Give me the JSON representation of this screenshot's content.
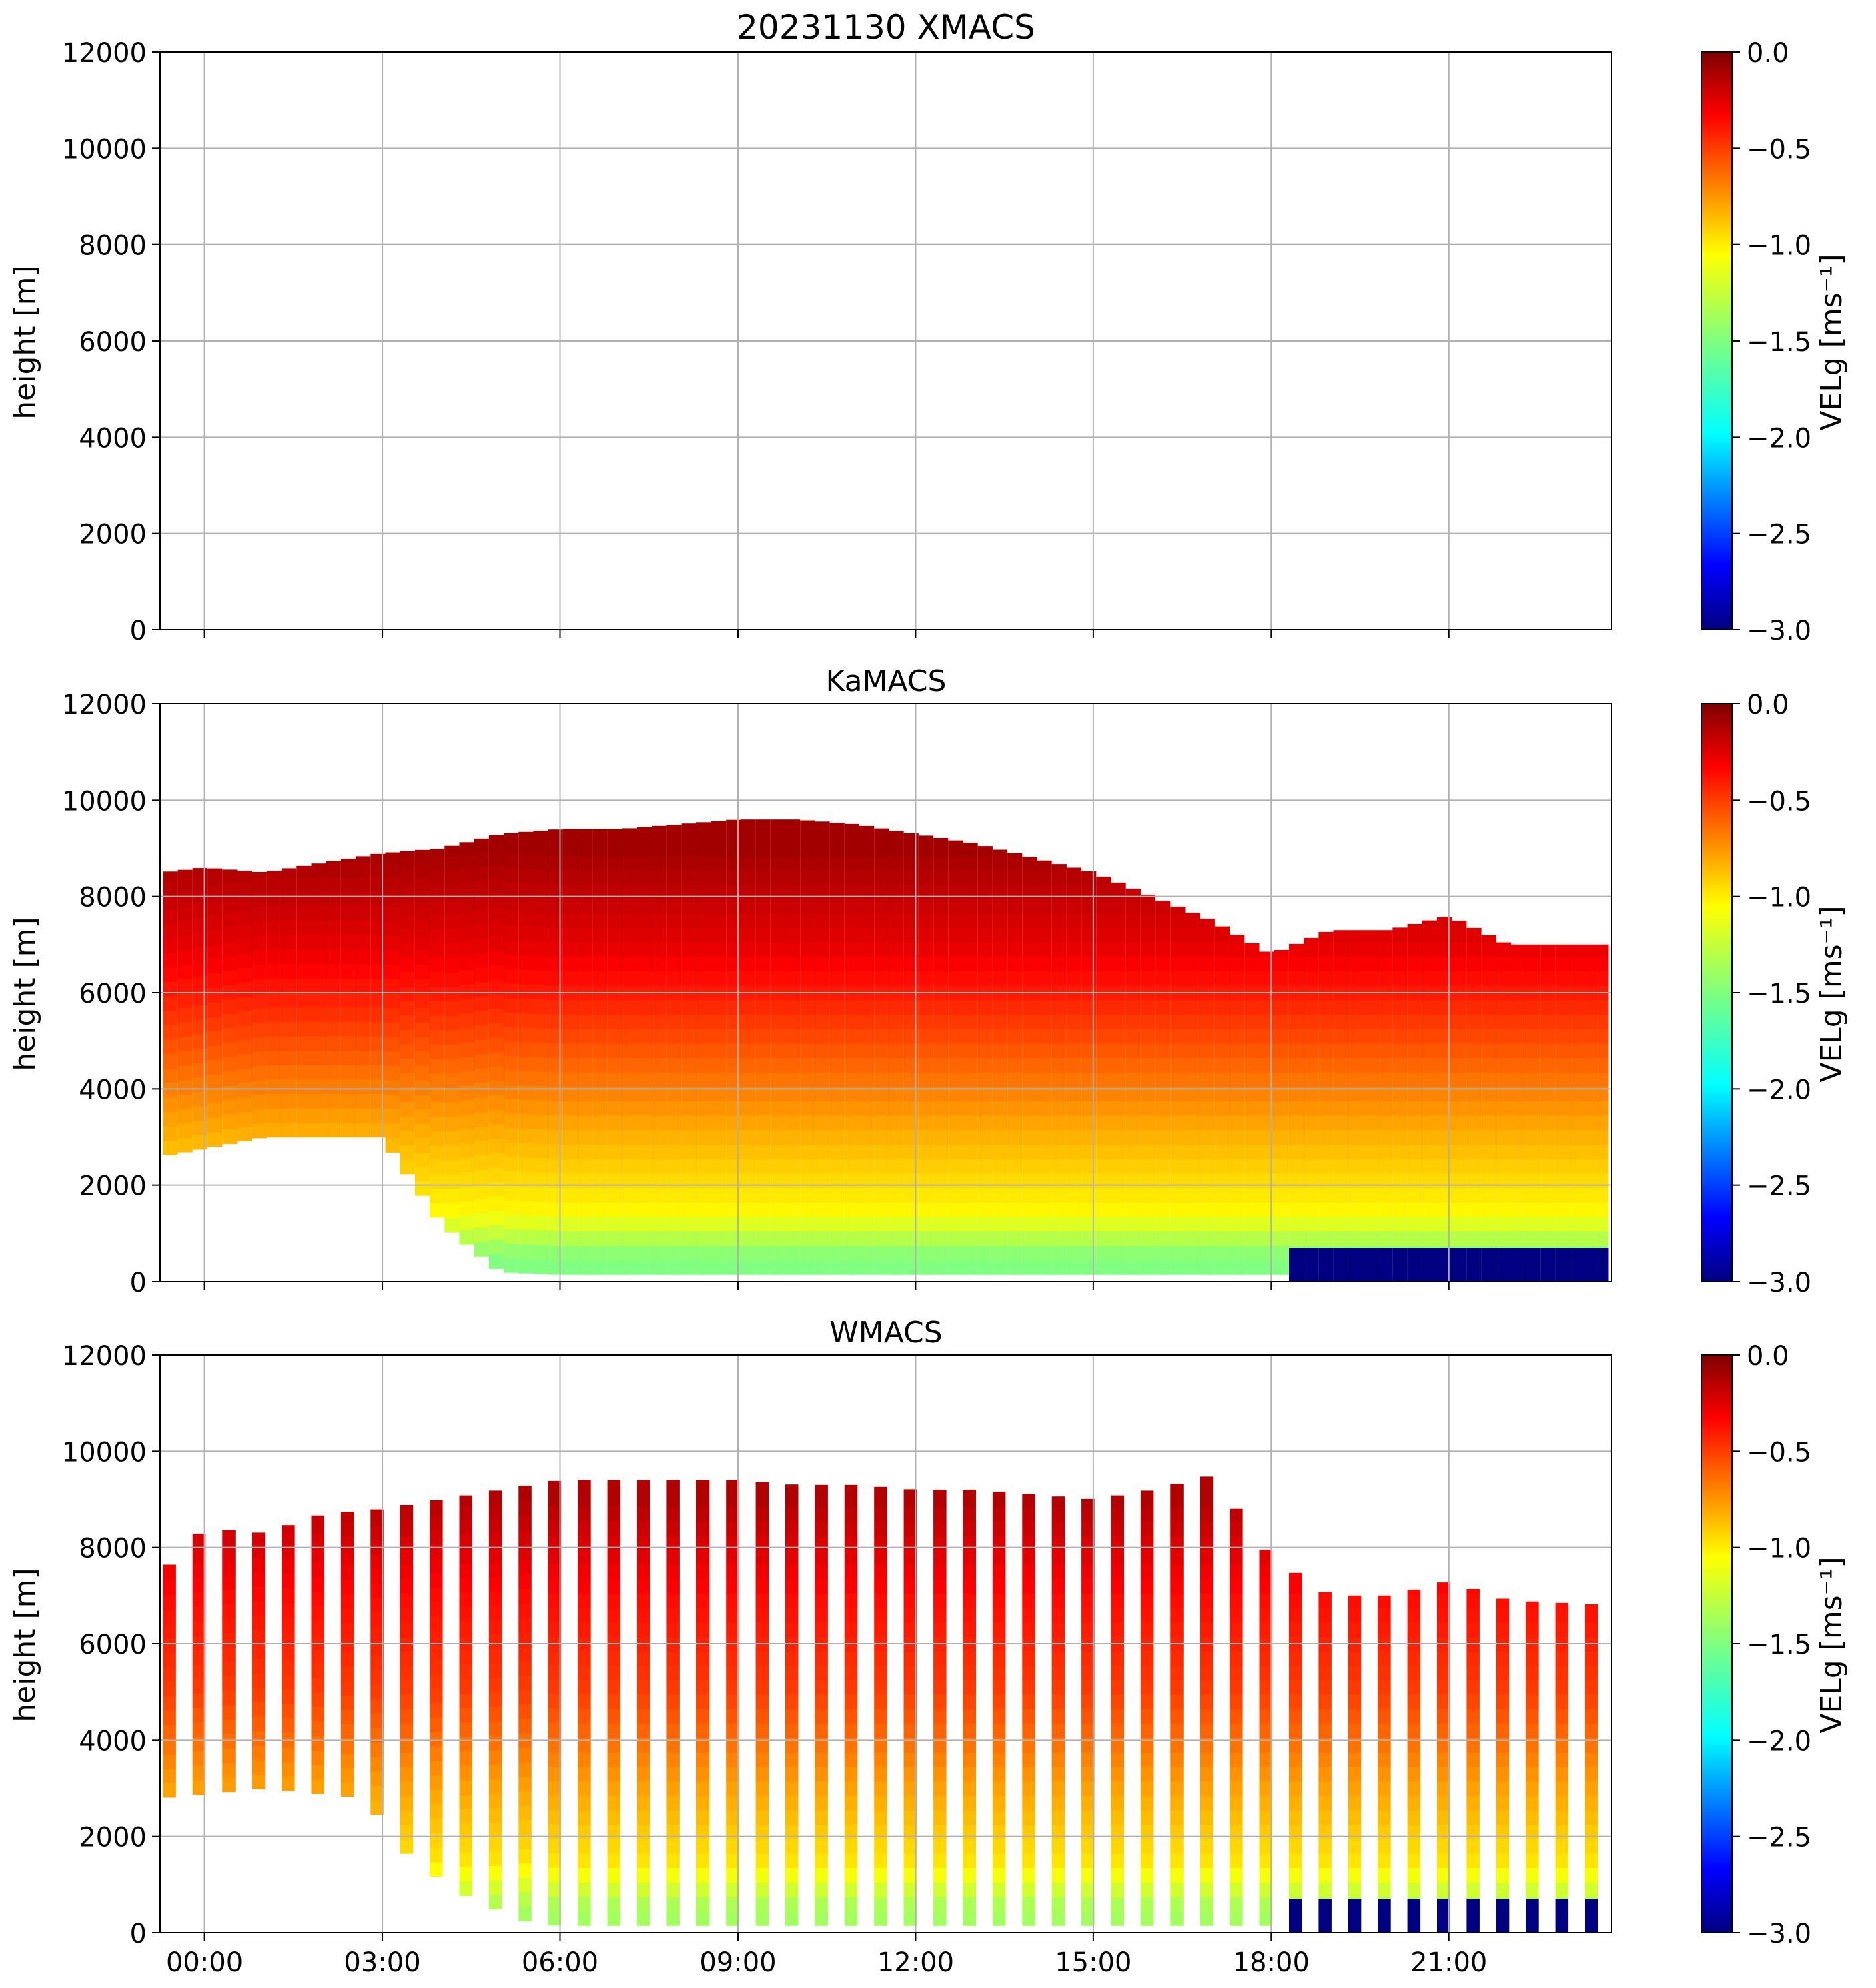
{
  "figure": {
    "colormap": "jet"
  },
  "chart_data": [
    {
      "type": "heatmap",
      "title": "20231130 XMACS",
      "xlabel": "",
      "ylabel": "height [m]",
      "ylim": [
        0,
        12000
      ],
      "yticks": [
        "0",
        "2000",
        "4000",
        "6000",
        "8000",
        "10000",
        "12000"
      ],
      "xlim_hours": [
        -0.75,
        23.75
      ],
      "xticks": [
        "00:00",
        "03:00",
        "06:00",
        "09:00",
        "12:00",
        "15:00",
        "18:00",
        "21:00"
      ],
      "show_xticklabels": false,
      "grid": true,
      "data_present": false,
      "colorbar": {
        "label": "VELg [ms⁻¹]",
        "range": [
          -3.0,
          0.0
        ],
        "ticks": [
          "0.0",
          "−0.5",
          "−1.0",
          "−1.5",
          "−2.0",
          "−2.5",
          "−3.0"
        ]
      }
    },
    {
      "type": "heatmap",
      "title": "KaMACS",
      "xlabel": "",
      "ylabel": "height [m]",
      "ylim": [
        0,
        12000
      ],
      "yticks": [
        "0",
        "2000",
        "4000",
        "6000",
        "8000",
        "10000",
        "12000"
      ],
      "xlim_hours": [
        -0.75,
        23.75
      ],
      "xticks": [
        "00:00",
        "03:00",
        "06:00",
        "09:00",
        "12:00",
        "15:00",
        "18:00",
        "21:00"
      ],
      "show_xticklabels": false,
      "grid": true,
      "data_present": true,
      "mode": "continuous",
      "cloud_top_profile_m": {
        "hours": [
          -0.7,
          0.0,
          1.0,
          2.0,
          3.0,
          4.0,
          5.0,
          6.0,
          7.0,
          8.0,
          9.0,
          10.0,
          11.0,
          12.0,
          13.0,
          14.0,
          15.0,
          16.0,
          17.0,
          18.0,
          19.0,
          20.0,
          21.0,
          22.0,
          23.7
        ],
        "top": [
          8500,
          8600,
          8500,
          8700,
          8900,
          9000,
          9300,
          9400,
          9400,
          9500,
          9600,
          9600,
          9500,
          9300,
          9100,
          8800,
          8500,
          8000,
          7500,
          6800,
          7300,
          7300,
          7600,
          7000,
          7000
        ]
      },
      "cloud_base_profile_m": {
        "hours": [
          -0.7,
          1.0,
          3.0,
          4.0,
          5.0,
          6.0,
          7.0,
          8.0,
          23.7
        ],
        "base": [
          2600,
          3000,
          3000,
          1200,
          200,
          150,
          150,
          150,
          150
        ]
      },
      "velocity_layers": [
        {
          "height_m": 9000,
          "velg": -0.1
        },
        {
          "height_m": 7000,
          "velg": -0.3
        },
        {
          "height_m": 5000,
          "velg": -0.6
        },
        {
          "height_m": 3000,
          "velg": -0.9
        },
        {
          "height_m": 1500,
          "velg": -1.1
        },
        {
          "height_m": 500,
          "velg": -1.5
        }
      ],
      "surface_precip": {
        "start_hour": 18.3,
        "top_m": 700,
        "velg": -3.0
      },
      "colorbar": {
        "label": "VELg [ms⁻¹]",
        "range": [
          -3.0,
          0.0
        ],
        "ticks": [
          "0.0",
          "−0.5",
          "−1.0",
          "−1.5",
          "−2.0",
          "−2.5",
          "−3.0"
        ]
      }
    },
    {
      "type": "heatmap",
      "title": "WMACS",
      "xlabel": "",
      "ylabel": "height [m]",
      "ylim": [
        0,
        12000
      ],
      "yticks": [
        "0",
        "2000",
        "4000",
        "6000",
        "8000",
        "10000",
        "12000"
      ],
      "xlim_hours": [
        -0.75,
        23.75
      ],
      "xticks": [
        "00:00",
        "03:00",
        "06:00",
        "09:00",
        "12:00",
        "15:00",
        "18:00",
        "21:00"
      ],
      "show_xticklabels": true,
      "grid": true,
      "data_present": true,
      "mode": "sampled_strips",
      "strip_interval_hours": 0.5,
      "strip_width_hours": 0.22,
      "cloud_top_profile_m": {
        "hours": [
          -0.7,
          0.0,
          1.0,
          2.0,
          3.0,
          4.0,
          5.0,
          6.0,
          7.0,
          8.0,
          9.0,
          10.0,
          11.0,
          12.0,
          13.0,
          14.0,
          15.0,
          16.0,
          17.0,
          18.0,
          19.0,
          20.0,
          21.0,
          22.0,
          23.7
        ],
        "top": [
          7500,
          8400,
          8300,
          8700,
          8800,
          9000,
          9200,
          9400,
          9400,
          9400,
          9400,
          9300,
          9300,
          9200,
          9200,
          9100,
          9000,
          9200,
          9500,
          7800,
          7000,
          7000,
          7300,
          6900,
          6800
        ]
      },
      "cloud_base_profile_m": {
        "hours": [
          -0.7,
          1.0,
          2.7,
          3.5,
          4.5,
          5.5,
          6.0,
          23.7
        ],
        "base": [
          2800,
          3000,
          2800,
          1500,
          700,
          200,
          150,
          150
        ]
      },
      "velocity_layers": [
        {
          "height_m": 9000,
          "velg": -0.15
        },
        {
          "height_m": 7000,
          "velg": -0.4
        },
        {
          "height_m": 5000,
          "velg": -0.55
        },
        {
          "height_m": 3000,
          "velg": -0.85
        },
        {
          "height_m": 1500,
          "velg": -1.05
        },
        {
          "height_m": 500,
          "velg": -1.4
        }
      ],
      "surface_precip": {
        "start_hour": 18.3,
        "top_m": 700,
        "velg": -3.0
      },
      "colorbar": {
        "label": "VELg [ms⁻¹]",
        "range": [
          -3.0,
          0.0
        ],
        "ticks": [
          "0.0",
          "−0.5",
          "−1.0",
          "−1.5",
          "−2.0",
          "−2.5",
          "−3.0"
        ]
      }
    }
  ]
}
